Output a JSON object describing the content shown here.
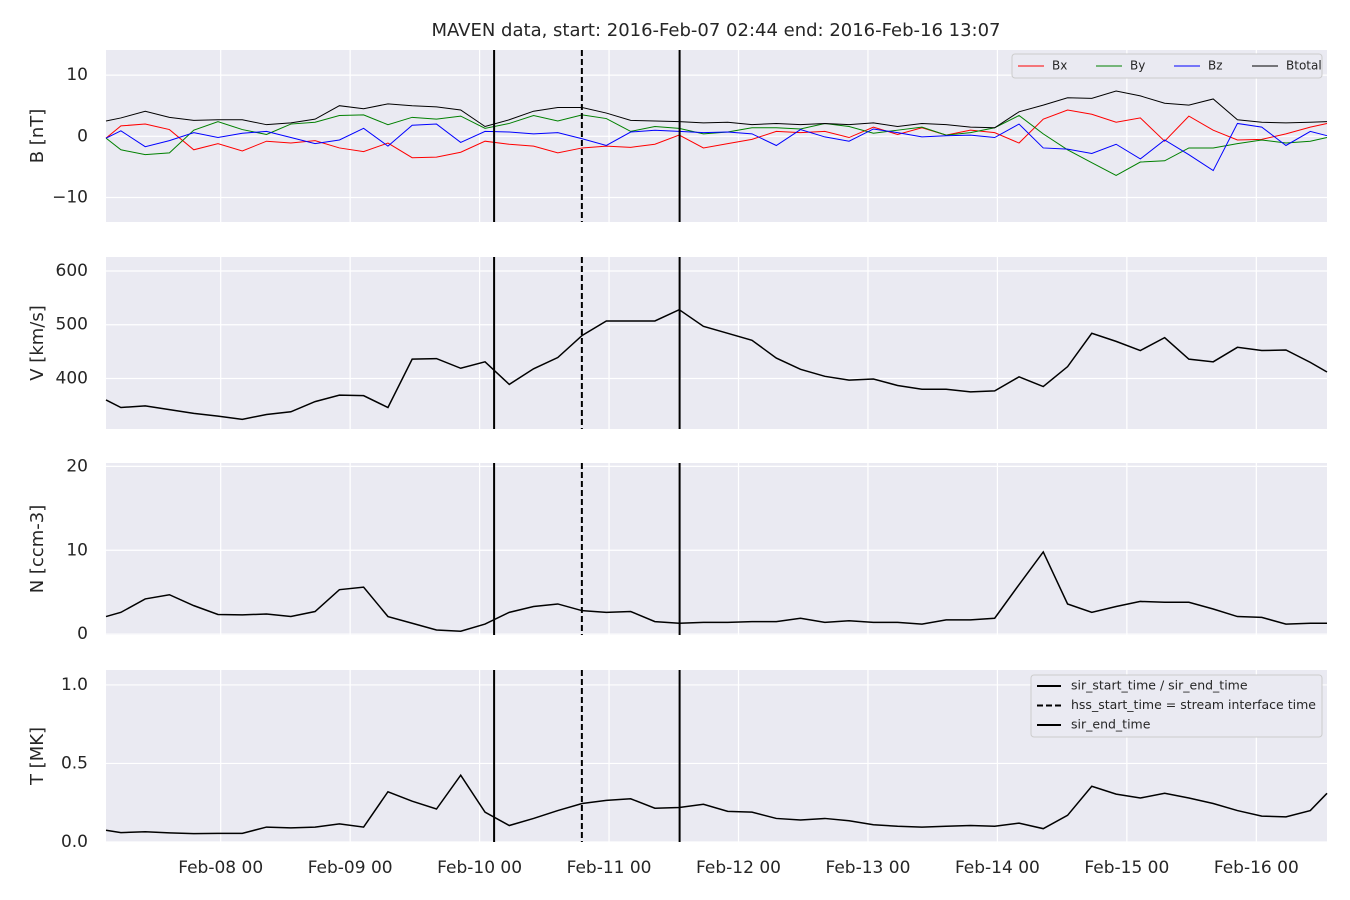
{
  "title": "MAVEN data, start: 2016-Feb-07 02:44  end: 2016-Feb-16 13:07",
  "xlim": [
    0.114,
    9.546
  ],
  "xticks": [
    {
      "value": 1,
      "label": "Feb-08 00"
    },
    {
      "value": 2,
      "label": "Feb-09 00"
    },
    {
      "value": 3,
      "label": "Feb-10 00"
    },
    {
      "value": 4,
      "label": "Feb-11 00"
    },
    {
      "value": 5,
      "label": "Feb-12 00"
    },
    {
      "value": 6,
      "label": "Feb-13 00"
    },
    {
      "value": 7,
      "label": "Feb-14 00"
    },
    {
      "value": 8,
      "label": "Feb-15 00"
    },
    {
      "value": 9,
      "label": "Feb-16 00"
    }
  ],
  "grid": true,
  "chart_data": [
    {
      "type": "line",
      "ylabel": "B [nT]",
      "ylim": [
        -14,
        14.1
      ],
      "yticks": [
        {
          "value": -10,
          "label": "−10"
        },
        0,
        10
      ],
      "legend": "upper right",
      "x": [
        0.114,
        0.229,
        0.417,
        0.604,
        0.792,
        0.979,
        1.167,
        1.354,
        1.542,
        1.729,
        1.917,
        2.104,
        2.292,
        2.479,
        2.667,
        2.854,
        3.042,
        3.229,
        3.417,
        3.604,
        3.792,
        3.979,
        4.167,
        4.354,
        4.542,
        4.729,
        4.917,
        5.104,
        5.292,
        5.479,
        5.667,
        5.854,
        6.042,
        6.229,
        6.417,
        6.604,
        6.792,
        6.979,
        7.167,
        7.354,
        7.542,
        7.729,
        7.917,
        8.104,
        8.292,
        8.479,
        8.667,
        8.854,
        9.042,
        9.229,
        9.417,
        9.546
      ],
      "series": [
        {
          "name": "Bx",
          "color": "#ff0000",
          "values": [
            -0.3,
            1.7,
            2.0,
            1.1,
            -2.2,
            -1.2,
            -2.4,
            -0.8,
            -1.1,
            -0.7,
            -1.9,
            -2.5,
            -1.1,
            -3.5,
            -3.4,
            -2.6,
            -0.8,
            -1.3,
            -1.6,
            -2.7,
            -1.9,
            -1.6,
            -1.8,
            -1.3,
            0.2,
            -1.9,
            -1.2,
            -0.5,
            0.8,
            0.6,
            0.8,
            -0.2,
            1.5,
            0.3,
            1.4,
            0.2,
            1.0,
            0.6,
            -1.1,
            2.8,
            4.3,
            3.6,
            2.3,
            3.0,
            -0.8,
            3.3,
            1.0,
            -0.6,
            -0.5,
            0.4,
            1.5,
            2.1
          ]
        },
        {
          "name": "By",
          "color": "#008000",
          "values": [
            -0.3,
            -2.2,
            -3.0,
            -2.7,
            1.0,
            2.4,
            1.1,
            0.3,
            2.0,
            2.3,
            3.4,
            3.5,
            1.9,
            3.1,
            2.8,
            3.3,
            1.3,
            2.1,
            3.4,
            2.5,
            3.5,
            2.9,
            0.8,
            1.6,
            1.3,
            0.4,
            0.7,
            1.4,
            1.4,
            1.2,
            2.1,
            1.6,
            0.5,
            1.0,
            1.5,
            0.2,
            0.6,
            1.4,
            3.4,
            0.4,
            -2.2,
            -4.3,
            -6.4,
            -4.2,
            -4.0,
            -1.9,
            -1.9,
            -1.2,
            -0.6,
            -1.1,
            -0.8,
            -0.2
          ]
        },
        {
          "name": "Bz",
          "color": "#0000ff",
          "values": [
            -0.3,
            0.9,
            -1.7,
            -0.7,
            0.6,
            -0.2,
            0.5,
            0.8,
            -0.2,
            -1.2,
            -0.6,
            1.3,
            -1.6,
            1.8,
            2.0,
            -1.0,
            0.8,
            0.7,
            0.4,
            0.6,
            -0.4,
            -1.5,
            0.7,
            1.0,
            0.8,
            0.6,
            0.7,
            0.4,
            -1.5,
            1.1,
            -0.1,
            -0.8,
            1.2,
            0.6,
            -0.1,
            0.1,
            0.2,
            -0.2,
            2.0,
            -1.9,
            -2.1,
            -2.8,
            -1.3,
            -3.7,
            -0.6,
            -3.0,
            -5.6,
            2.1,
            1.5,
            -1.5,
            0.8,
            0.1
          ]
        },
        {
          "name": "Btotal",
          "color": "#000000",
          "values": [
            2.5,
            3.0,
            4.1,
            3.1,
            2.6,
            2.7,
            2.7,
            1.9,
            2.2,
            2.8,
            5.0,
            4.5,
            5.3,
            5.0,
            4.8,
            4.3,
            1.6,
            2.7,
            4.1,
            4.7,
            4.7,
            3.8,
            2.6,
            2.5,
            2.4,
            2.2,
            2.3,
            1.9,
            2.1,
            1.9,
            2.1,
            1.9,
            2.2,
            1.6,
            2.1,
            1.9,
            1.5,
            1.4,
            4.0,
            5.1,
            6.3,
            6.2,
            7.4,
            6.6,
            5.4,
            5.1,
            6.1,
            2.7,
            2.3,
            2.2,
            2.3,
            2.4
          ]
        }
      ]
    },
    {
      "type": "line",
      "ylabel": "V [km/s]",
      "ylim": [
        306,
        626
      ],
      "yticks": [
        400,
        500,
        600
      ],
      "color": "#000000",
      "x": [
        0.114,
        0.229,
        0.417,
        0.604,
        0.792,
        0.979,
        1.167,
        1.354,
        1.542,
        1.729,
        1.917,
        2.104,
        2.292,
        2.479,
        2.667,
        2.854,
        3.042,
        3.229,
        3.417,
        3.604,
        3.792,
        3.979,
        4.167,
        4.354,
        4.542,
        4.729,
        4.917,
        5.104,
        5.292,
        5.479,
        5.667,
        5.854,
        6.042,
        6.229,
        6.417,
        6.604,
        6.792,
        6.979,
        7.167,
        7.354,
        7.542,
        7.729,
        7.917,
        8.104,
        8.292,
        8.479,
        8.667,
        8.854,
        9.042,
        9.229,
        9.417,
        9.546
      ],
      "values": [
        360,
        346,
        349,
        342,
        335,
        330,
        324,
        333,
        338,
        357,
        369,
        368,
        346,
        436,
        437,
        419,
        431,
        389,
        418,
        439,
        480,
        507,
        507,
        507,
        528,
        497,
        484,
        471,
        438,
        417,
        404,
        397,
        399,
        387,
        380,
        380,
        375,
        377,
        403,
        385,
        422,
        484,
        469,
        452,
        476,
        436,
        431,
        458,
        452,
        453,
        430,
        412
      ]
    },
    {
      "type": "line",
      "ylabel": "N [ccm-3]",
      "ylim": [
        -0.1,
        20.4
      ],
      "yticks": [
        0,
        10,
        20
      ],
      "color": "#000000",
      "x": [
        0.114,
        0.229,
        0.417,
        0.604,
        0.792,
        0.979,
        1.167,
        1.354,
        1.542,
        1.729,
        1.917,
        2.104,
        2.292,
        2.479,
        2.667,
        2.854,
        3.042,
        3.229,
        3.417,
        3.604,
        3.792,
        3.979,
        4.167,
        4.354,
        4.542,
        4.729,
        4.917,
        5.104,
        5.292,
        5.479,
        5.667,
        5.854,
        6.042,
        6.229,
        6.417,
        6.604,
        6.792,
        6.979,
        7.167,
        7.354,
        7.542,
        7.729,
        7.917,
        8.104,
        8.292,
        8.479,
        8.667,
        8.854,
        9.042,
        9.229,
        9.417,
        9.546
      ],
      "values": [
        2.1,
        2.6,
        4.2,
        4.7,
        3.4,
        2.35,
        2.3,
        2.4,
        2.1,
        2.7,
        5.3,
        5.6,
        2.1,
        1.3,
        0.5,
        0.35,
        1.2,
        2.6,
        3.3,
        3.6,
        2.8,
        2.6,
        2.7,
        1.5,
        1.3,
        1.4,
        1.4,
        1.5,
        1.5,
        1.9,
        1.4,
        1.6,
        1.4,
        1.4,
        1.2,
        1.7,
        1.7,
        1.9,
        5.9,
        9.8,
        3.6,
        2.6,
        3.3,
        3.9,
        3.8,
        3.8,
        3.0,
        2.1,
        2.0,
        1.2,
        1.3,
        1.3
      ]
    },
    {
      "type": "line",
      "ylabel": "T [MK]",
      "ylim": [
        0,
        1.095
      ],
      "yticks": [
        {
          "value": 0,
          "label": "0.0"
        },
        0.5,
        {
          "value": 1,
          "label": "1.0"
        }
      ],
      "color": "#000000",
      "legend": "upper right",
      "x": [
        0.114,
        0.229,
        0.417,
        0.604,
        0.792,
        0.979,
        1.167,
        1.354,
        1.542,
        1.729,
        1.917,
        2.104,
        2.292,
        2.479,
        2.667,
        2.854,
        3.042,
        3.229,
        3.417,
        3.604,
        3.792,
        3.979,
        4.167,
        4.354,
        4.542,
        4.729,
        4.917,
        5.104,
        5.292,
        5.479,
        5.667,
        5.854,
        6.042,
        6.229,
        6.417,
        6.604,
        6.792,
        6.979,
        7.167,
        7.354,
        7.542,
        7.729,
        7.917,
        8.104,
        8.292,
        8.479,
        8.667,
        8.854,
        9.042,
        9.229,
        9.417,
        9.546
      ],
      "values": [
        0.075,
        0.06,
        0.065,
        0.058,
        0.053,
        0.055,
        0.055,
        0.095,
        0.09,
        0.095,
        0.115,
        0.095,
        0.32,
        0.26,
        0.21,
        0.425,
        0.19,
        0.105,
        0.15,
        0.2,
        0.245,
        0.265,
        0.275,
        0.215,
        0.22,
        0.24,
        0.195,
        0.19,
        0.15,
        0.14,
        0.15,
        0.135,
        0.11,
        0.1,
        0.095,
        0.1,
        0.105,
        0.1,
        0.12,
        0.085,
        0.17,
        0.355,
        0.305,
        0.28,
        0.31,
        0.28,
        0.245,
        0.2,
        0.165,
        0.16,
        0.2,
        0.31
      ],
      "vlines": [
        {
          "name": "sir_start_time / sir_end_time",
          "x": 3.112,
          "color": "#000000",
          "dashed": false
        },
        {
          "name": "hss_start_time = stream interface time",
          "x": 3.79,
          "color": "#000000",
          "dashed": true
        },
        {
          "name": "sir_end_time",
          "x": 4.545,
          "color": "#000000",
          "dashed": false
        }
      ]
    }
  ]
}
